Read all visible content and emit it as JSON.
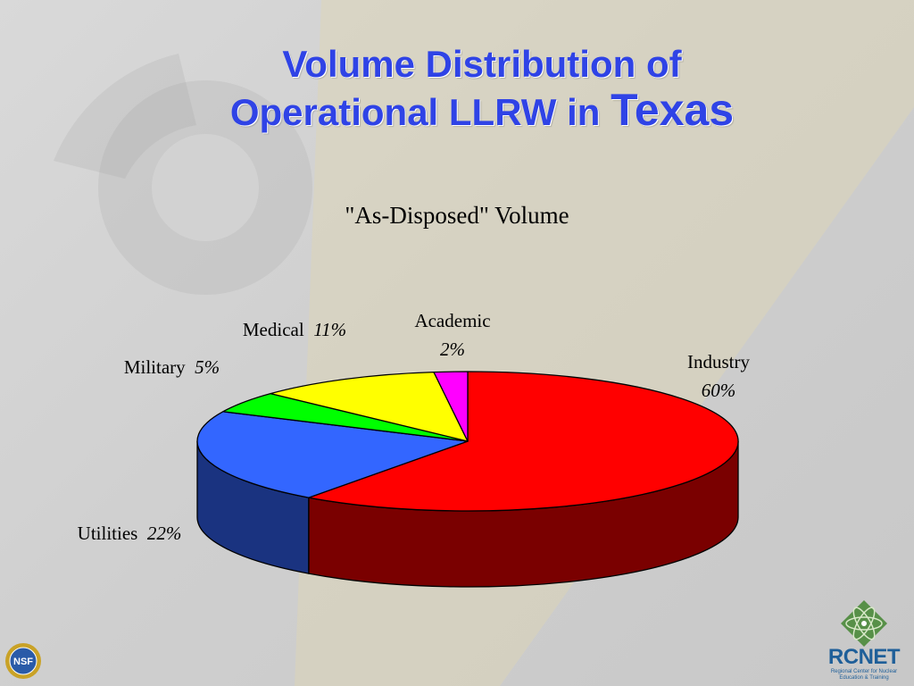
{
  "title": {
    "line1": "Volume Distribution of",
    "line2_main": "Operational LLRW in ",
    "line2_emph": "Texas"
  },
  "chart_data": {
    "type": "pie",
    "title": "\"As-Disposed\" Volume",
    "slices": [
      {
        "name": "Industry",
        "value": 60,
        "percent_label": "60%",
        "color": "#ff0000",
        "side_color": "#7a0000"
      },
      {
        "name": "Utilities",
        "value": 22,
        "percent_label": "22%",
        "color": "#3366ff",
        "side_color": "#1a3380"
      },
      {
        "name": "Military",
        "value": 5,
        "percent_label": "5%",
        "color": "#00ff00",
        "side_color": "#008000"
      },
      {
        "name": "Medical",
        "value": 11,
        "percent_label": "11%",
        "color": "#ffff00",
        "side_color": "#808000"
      },
      {
        "name": "Academic",
        "value": 2,
        "percent_label": "2%",
        "color": "#ff00ff",
        "side_color": "#800080"
      }
    ],
    "style": "3d"
  },
  "logos": {
    "left": "NSF",
    "right": "RCNET",
    "right_subtitle": "Regional Center for Nuclear Education & Training"
  }
}
